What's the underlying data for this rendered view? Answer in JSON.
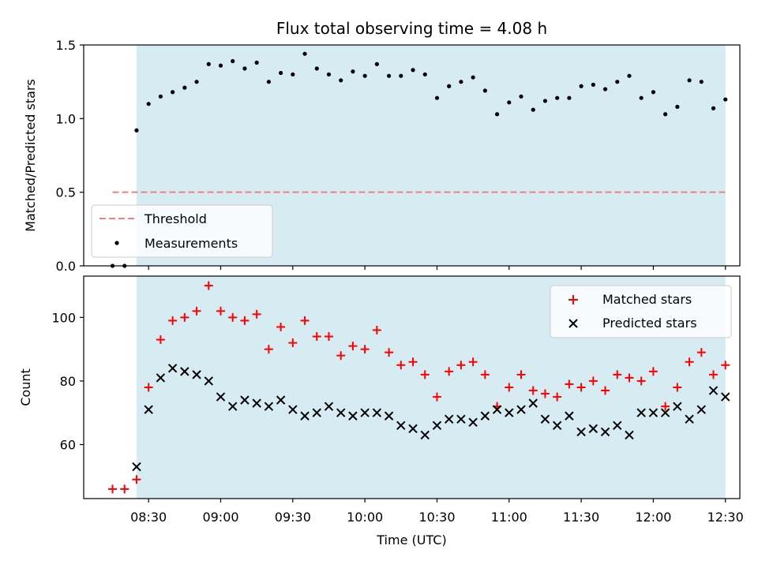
{
  "chart_data": [
    {
      "type": "scatter",
      "title": "Flux total observing time = 4.08 h",
      "ylabel": "Matched/Predicted stars",
      "xlabel": "",
      "ylim": [
        0,
        1.5
      ],
      "yticks": [
        0.0,
        0.5,
        1.0,
        1.5
      ],
      "ytick_labels": [
        "0.0",
        "0.5",
        "1.0",
        "1.5"
      ],
      "xlim": [
        "08:03",
        "12:36"
      ],
      "grid": false,
      "legend_position": "lower-left",
      "observing_window": {
        "start": "08:25",
        "end": "12:30",
        "color": "#add8e6"
      },
      "threshold": {
        "label": "Threshold",
        "value": 0.5,
        "start": "08:15",
        "end": "12:30",
        "color": "#f08080"
      },
      "series": [
        {
          "name": "Measurements",
          "marker": "dot",
          "color": "#000000",
          "times": [
            "08:15",
            "08:20",
            "08:25",
            "08:30",
            "08:35",
            "08:40",
            "08:45",
            "08:50",
            "08:55",
            "09:00",
            "09:05",
            "09:10",
            "09:15",
            "09:20",
            "09:25",
            "09:30",
            "09:35",
            "09:40",
            "09:45",
            "09:50",
            "09:55",
            "10:00",
            "10:05",
            "10:10",
            "10:15",
            "10:20",
            "10:25",
            "10:30",
            "10:35",
            "10:40",
            "10:45",
            "10:50",
            "10:55",
            "11:00",
            "11:05",
            "11:10",
            "11:15",
            "11:20",
            "11:25",
            "11:30",
            "11:35",
            "11:40",
            "11:45",
            "11:50",
            "11:55",
            "12:00",
            "12:05",
            "12:10",
            "12:15",
            "12:20",
            "12:25",
            "12:30"
          ],
          "values": [
            0.0,
            0.0,
            0.92,
            1.1,
            1.15,
            1.18,
            1.21,
            1.25,
            1.37,
            1.36,
            1.39,
            1.34,
            1.38,
            1.25,
            1.31,
            1.3,
            1.44,
            1.34,
            1.3,
            1.26,
            1.32,
            1.29,
            1.37,
            1.29,
            1.29,
            1.33,
            1.3,
            1.14,
            1.22,
            1.25,
            1.28,
            1.19,
            1.03,
            1.11,
            1.15,
            1.06,
            1.12,
            1.14,
            1.14,
            1.22,
            1.23,
            1.2,
            1.25,
            1.29,
            1.14,
            1.18,
            1.03,
            1.08,
            1.26,
            1.25,
            1.07,
            1.13
          ]
        }
      ]
    },
    {
      "type": "scatter",
      "title": "",
      "ylabel": "Count",
      "xlabel": "Time (UTC)",
      "ylim": [
        43,
        113
      ],
      "yticks": [
        60,
        80,
        100
      ],
      "ytick_labels": [
        "60",
        "80",
        "100"
      ],
      "xlim": [
        "08:03",
        "12:36"
      ],
      "xticks": [
        "08:30",
        "09:00",
        "09:30",
        "10:00",
        "10:30",
        "11:00",
        "11:30",
        "12:00",
        "12:30"
      ],
      "xtick_labels": [
        "08:30",
        "09:00",
        "09:30",
        "10:00",
        "10:30",
        "11:00",
        "11:30",
        "12:00",
        "12:30"
      ],
      "grid": false,
      "legend_position": "top-right",
      "observing_window": {
        "start": "08:25",
        "end": "12:30",
        "color": "#add8e6"
      },
      "series": [
        {
          "name": "Matched stars",
          "marker": "plus",
          "color": "#ff0000",
          "times": [
            "08:15",
            "08:20",
            "08:25",
            "08:30",
            "08:35",
            "08:40",
            "08:45",
            "08:50",
            "08:55",
            "09:00",
            "09:05",
            "09:10",
            "09:15",
            "09:20",
            "09:25",
            "09:30",
            "09:35",
            "09:40",
            "09:45",
            "09:50",
            "09:55",
            "10:00",
            "10:05",
            "10:10",
            "10:15",
            "10:20",
            "10:25",
            "10:30",
            "10:35",
            "10:40",
            "10:45",
            "10:50",
            "10:55",
            "11:00",
            "11:05",
            "11:10",
            "11:15",
            "11:20",
            "11:25",
            "11:30",
            "11:35",
            "11:40",
            "11:45",
            "11:50",
            "11:55",
            "12:00",
            "12:05",
            "12:10",
            "12:15",
            "12:20",
            "12:25",
            "12:30"
          ],
          "values": [
            46,
            46,
            49,
            78,
            93,
            99,
            100,
            102,
            110,
            102,
            100,
            99,
            101,
            90,
            97,
            92,
            99,
            94,
            94,
            88,
            91,
            90,
            96,
            89,
            85,
            86,
            82,
            75,
            83,
            85,
            86,
            82,
            72,
            78,
            82,
            77,
            76,
            75,
            79,
            78,
            80,
            77,
            82,
            81,
            80,
            83,
            72,
            78,
            86,
            89,
            82,
            85
          ]
        },
        {
          "name": "Predicted stars",
          "marker": "x",
          "color": "#000000",
          "times": [
            "08:25",
            "08:30",
            "08:35",
            "08:40",
            "08:45",
            "08:50",
            "08:55",
            "09:00",
            "09:05",
            "09:10",
            "09:15",
            "09:20",
            "09:25",
            "09:30",
            "09:35",
            "09:40",
            "09:45",
            "09:50",
            "09:55",
            "10:00",
            "10:05",
            "10:10",
            "10:15",
            "10:20",
            "10:25",
            "10:30",
            "10:35",
            "10:40",
            "10:45",
            "10:50",
            "10:55",
            "11:00",
            "11:05",
            "11:10",
            "11:15",
            "11:20",
            "11:25",
            "11:30",
            "11:35",
            "11:40",
            "11:45",
            "11:50",
            "11:55",
            "12:00",
            "12:05",
            "12:10",
            "12:15",
            "12:20",
            "12:25",
            "12:30"
          ],
          "values": [
            53,
            71,
            81,
            84,
            83,
            82,
            80,
            75,
            72,
            74,
            73,
            72,
            74,
            71,
            69,
            70,
            72,
            70,
            69,
            70,
            70,
            69,
            66,
            65,
            63,
            66,
            68,
            68,
            67,
            69,
            71,
            70,
            71,
            73,
            68,
            66,
            69,
            64,
            65,
            64,
            66,
            63,
            70,
            70,
            70,
            72,
            68,
            71,
            77,
            75
          ]
        }
      ]
    }
  ]
}
